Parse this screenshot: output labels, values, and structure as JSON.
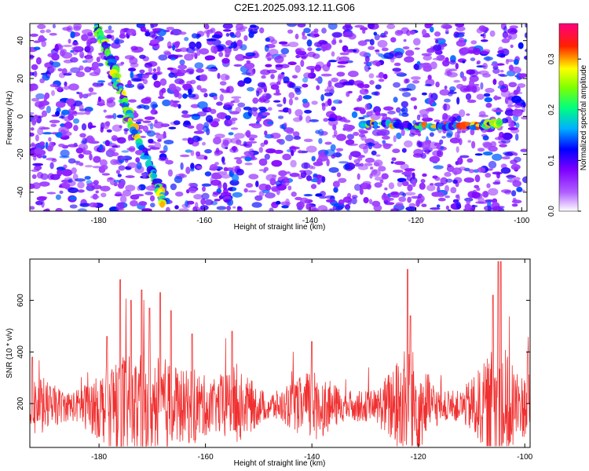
{
  "figure": {
    "title": "C2E1.2025.093.12.11.G06"
  },
  "chart_data": [
    {
      "type": "heatmap",
      "title": "",
      "xlabel": "Height of straight line (km)",
      "ylabel": "Frequency (Hz)",
      "xlim": [
        -193,
        -99
      ],
      "ylim": [
        -50,
        49
      ],
      "xticks": [
        -180,
        -160,
        -140,
        -120,
        -100
      ],
      "yticks": [
        -40,
        -20,
        0,
        20,
        40
      ],
      "colorbar": {
        "label": "Normalized spectral amplitude",
        "range": [
          0,
          0.37
        ],
        "ticks": [
          0.0,
          0.1,
          0.2,
          0.3
        ],
        "colors": [
          "#ffffff",
          "#7f00ff",
          "#0000ff",
          "#00ffff",
          "#00ff00",
          "#ffff00",
          "#ff0000",
          "#ff00aa"
        ]
      },
      "features": [
        {
          "name": "streak",
          "points": [
            [
              -180.5,
              47
            ],
            [
              -178,
              33
            ],
            [
              -176,
              15
            ],
            [
              -174,
              -3
            ],
            [
              -170,
              -28
            ],
            [
              -167.5,
              -47
            ]
          ],
          "amplitude": 0.3
        },
        {
          "name": "band",
          "points": [
            [
              -130,
              -4
            ],
            [
              -120,
              -5
            ],
            [
              -110,
              -5
            ],
            [
              -104,
              -4
            ]
          ],
          "amplitude": 0.33
        }
      ],
      "grid": false
    },
    {
      "type": "line",
      "title": "",
      "xlabel": "Height of straight line (km)",
      "ylabel": "SNR (10 * v/v)",
      "xlim": [
        -193,
        -99
      ],
      "ylim": [
        30,
        760
      ],
      "xticks": [
        -180,
        -160,
        -140,
        -120,
        -100
      ],
      "yticks": [
        200,
        400,
        600
      ],
      "series": [
        {
          "name": "",
          "color": "#f03030",
          "baseline": 190,
          "noise": 60,
          "spikes": [
            [
              -192.5,
              380
            ],
            [
              -178.5,
              460
            ],
            [
              -176,
              680
            ],
            [
              -174,
              600
            ],
            [
              -172,
              640
            ],
            [
              -170.5,
              570
            ],
            [
              -168.5,
              630
            ],
            [
              -166.5,
              560
            ],
            [
              -162.5,
              470
            ],
            [
              -155,
              480
            ],
            [
              -140,
              440
            ],
            [
              -122,
              720
            ],
            [
              -121.5,
              540
            ],
            [
              -106,
              620
            ],
            [
              -105,
              750
            ],
            [
              -104.5,
              750
            ],
            [
              -99.5,
              400
            ]
          ]
        }
      ],
      "grid": false
    }
  ]
}
